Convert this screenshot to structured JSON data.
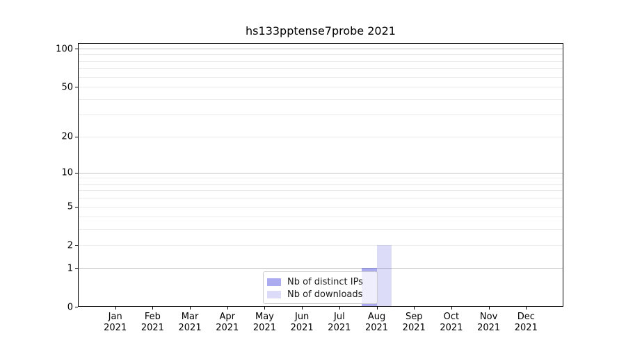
{
  "title": "hs133pptense7probe 2021",
  "colors": {
    "background": "#ffffff",
    "spine": "#000000",
    "text": "#000000",
    "grid_major": "#c2c2c2",
    "grid_minor": "#ebebeb",
    "legend_border": "#cccccc",
    "legend_bg": "rgba(255,255,255,0.8)",
    "series": [
      "rgba(68,68,221,0.45)",
      "rgba(68,68,221,0.19)"
    ]
  },
  "legend": {
    "items": [
      {
        "label": "Nb of distinct IPs"
      },
      {
        "label": "Nb of downloads"
      }
    ]
  },
  "chart_data": {
    "type": "bar",
    "title": "hs133pptense7probe 2021",
    "categories": [
      "Jan 2021",
      "Feb 2021",
      "Mar 2021",
      "Apr 2021",
      "May 2021",
      "Jun 2021",
      "Jul 2021",
      "Aug 2021",
      "Sep 2021",
      "Oct 2021",
      "Nov 2021",
      "Dec 2021"
    ],
    "months": [
      "Jan",
      "Feb",
      "Mar",
      "Apr",
      "May",
      "Jun",
      "Jul",
      "Aug",
      "Sep",
      "Oct",
      "Nov",
      "Dec"
    ],
    "year_label": "2021",
    "series": [
      {
        "name": "Nb of distinct IPs",
        "values": [
          0,
          0,
          0,
          0,
          0,
          0,
          0,
          1,
          0,
          0,
          0,
          0
        ]
      },
      {
        "name": "Nb of downloads",
        "values": [
          0,
          0,
          0,
          0,
          0,
          0,
          0,
          2,
          0,
          0,
          0,
          0
        ]
      }
    ],
    "yscale": "log1p",
    "yticks": [
      0,
      1,
      2,
      5,
      10,
      20,
      50,
      100
    ],
    "ylim": [
      0,
      110
    ],
    "major_gridlines": [
      1,
      10,
      100
    ],
    "minor_gridlines": [
      2,
      3,
      4,
      5,
      6,
      7,
      8,
      9,
      20,
      30,
      40,
      50,
      60,
      70,
      80,
      90
    ],
    "grid": true,
    "legend_position": "lower center"
  }
}
